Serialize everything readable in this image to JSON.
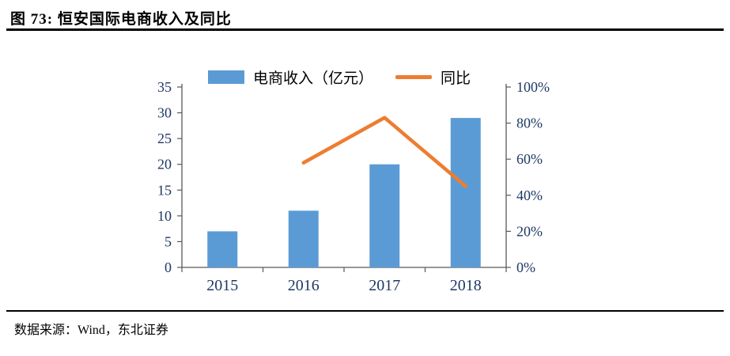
{
  "header": {
    "title": "图  73:  恒安国际电商收入及同比"
  },
  "footer": {
    "source": "数据来源：Wind，东北证券"
  },
  "colors": {
    "bar": "#5B9BD5",
    "line": "#ED7D31",
    "tick_text": "#1F3864",
    "axis": "#595959",
    "rule": "#000000"
  },
  "chart_data": {
    "type": "bar+line",
    "title": "恒安国际电商收入及同比",
    "categories": [
      "2015",
      "2016",
      "2017",
      "2018"
    ],
    "series": [
      {
        "name": "电商收入（亿元）",
        "type": "bar",
        "axis": "left",
        "color": "#5B9BD5",
        "values": [
          7,
          11,
          20,
          29
        ]
      },
      {
        "name": "同比",
        "type": "line",
        "axis": "right",
        "color": "#ED7D31",
        "values": [
          null,
          58,
          83,
          45
        ]
      }
    ],
    "left_axis": {
      "min": 0,
      "max": 35,
      "step": 5,
      "ticks": [
        "0",
        "5",
        "10",
        "15",
        "20",
        "25",
        "30",
        "35"
      ]
    },
    "right_axis": {
      "min": 0,
      "max": 100,
      "step": 20,
      "ticks": [
        "0%",
        "20%",
        "40%",
        "60%",
        "80%",
        "100%"
      ]
    },
    "legend_position": "top",
    "grid": false
  }
}
